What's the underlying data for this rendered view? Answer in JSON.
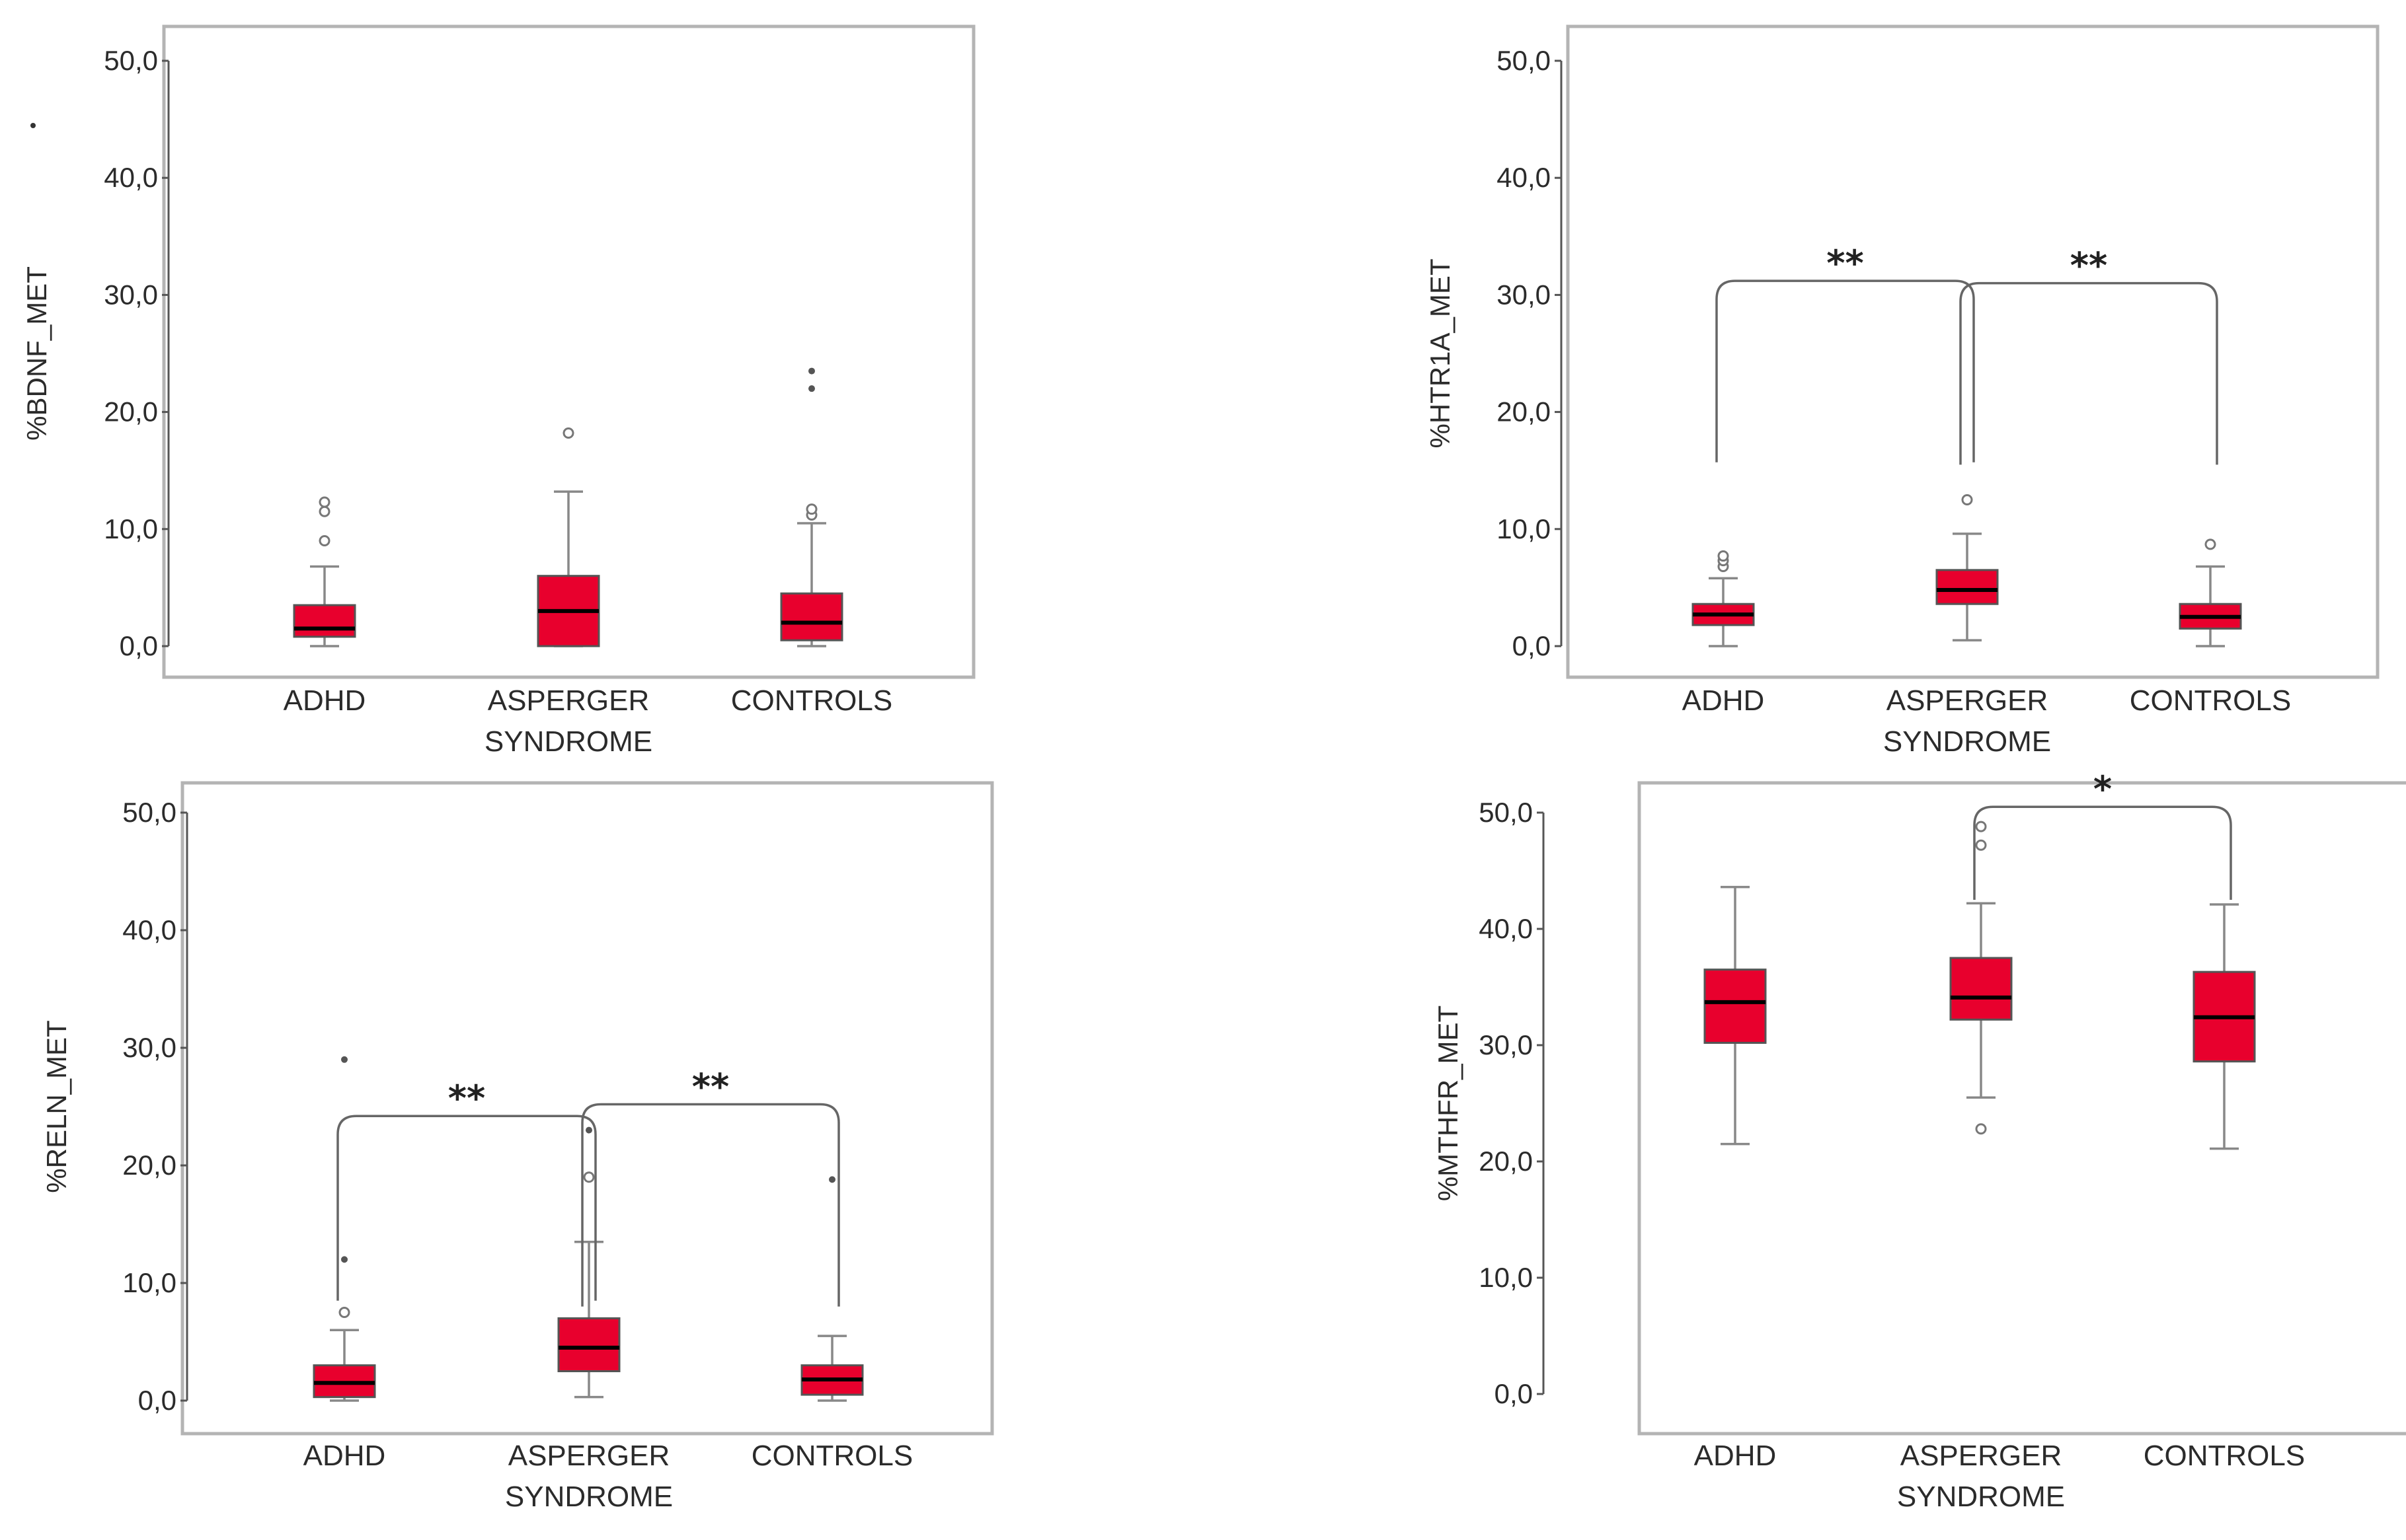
{
  "colors": {
    "box_fill": "#e8002d",
    "frame": "#b4b4b4"
  },
  "chart_data": [
    {
      "type": "box",
      "ylabel": "%BDNF_MET",
      "ylim": [
        0,
        50
      ],
      "yticks": [
        "0,0",
        "10,0",
        "20,0",
        "30,0",
        "40,0",
        "50,0"
      ],
      "categories": [
        "ADHD",
        "ASPERGER SYNDROME",
        "CONTROLS"
      ],
      "category_lines": [
        [
          "ADHD"
        ],
        [
          "ASPERGER",
          "SYNDROME"
        ],
        [
          "CONTROLS"
        ]
      ],
      "boxes": [
        {
          "min": 0.0,
          "q1": 0.8,
          "median": 1.5,
          "q3": 3.5,
          "max": 6.8,
          "outliers": [
            9.0,
            11.5,
            12.3
          ],
          "extremes": []
        },
        {
          "min": 0.0,
          "q1": 0.0,
          "median": 3.0,
          "q3": 6.0,
          "max": 13.2,
          "outliers": [
            18.2
          ],
          "extremes": []
        },
        {
          "min": 0.0,
          "q1": 0.5,
          "median": 2.0,
          "q3": 4.5,
          "max": 10.5,
          "outliers": [
            11.2,
            11.7
          ],
          "extremes": [
            22.0,
            23.5
          ]
        }
      ],
      "brackets": []
    },
    {
      "type": "box",
      "ylabel": "%HTR1A_MET",
      "ylim": [
        0,
        50
      ],
      "yticks": [
        "0,0",
        "10,0",
        "20,0",
        "30,0",
        "40,0",
        "50,0"
      ],
      "categories": [
        "ADHD",
        "ASPERGER SYNDROME",
        "CONTROLS"
      ],
      "category_lines": [
        [
          "ADHD"
        ],
        [
          "ASPERGER",
          "SYNDROME"
        ],
        [
          "CONTROLS"
        ]
      ],
      "boxes": [
        {
          "min": 0.0,
          "q1": 1.8,
          "median": 2.7,
          "q3": 3.6,
          "max": 5.8,
          "outliers": [
            6.8,
            7.3,
            7.7
          ],
          "extremes": []
        },
        {
          "min": 0.5,
          "q1": 3.6,
          "median": 4.8,
          "q3": 6.5,
          "max": 9.6,
          "outliers": [
            12.5
          ],
          "extremes": []
        },
        {
          "min": 0.0,
          "q1": 1.5,
          "median": 2.5,
          "q3": 3.6,
          "max": 6.8,
          "outliers": [
            8.7
          ],
          "extremes": []
        }
      ],
      "brackets": [
        {
          "from": 0,
          "to": 1,
          "y": 31.2,
          "drop_from": 15.7,
          "drop_to": 15.7,
          "label": "**"
        },
        {
          "from": 1,
          "to": 2,
          "y": 31.0,
          "drop_from": 15.5,
          "drop_to": 15.5,
          "label": "**"
        }
      ]
    },
    {
      "type": "box",
      "ylabel": "%RELN_MET",
      "ylim": [
        0,
        50
      ],
      "yticks": [
        "0,0",
        "10,0",
        "20,0",
        "30,0",
        "40,0",
        "50,0"
      ],
      "categories": [
        "ADHD",
        "ASPERGER SYNDROME",
        "CONTROLS"
      ],
      "category_lines": [
        [
          "ADHD"
        ],
        [
          "ASPERGER",
          "SYNDROME"
        ],
        [
          "CONTROLS"
        ]
      ],
      "boxes": [
        {
          "min": 0.0,
          "q1": 0.3,
          "median": 1.5,
          "q3": 3.0,
          "max": 6.0,
          "outliers": [
            7.5
          ],
          "extremes": [
            12.0,
            29.0
          ]
        },
        {
          "min": 0.3,
          "q1": 2.5,
          "median": 4.5,
          "q3": 7.0,
          "max": 13.5,
          "outliers": [
            19.0
          ],
          "extremes": [
            23.0
          ]
        },
        {
          "min": 0.0,
          "q1": 0.5,
          "median": 1.8,
          "q3": 3.0,
          "max": 5.5,
          "outliers": [],
          "extremes": [
            18.8
          ]
        }
      ],
      "brackets": [
        {
          "from": 0,
          "to": 1,
          "y": 24.2,
          "drop_from": 8.5,
          "drop_to": 8.5,
          "label": "**"
        },
        {
          "from": 1,
          "to": 2,
          "y": 25.2,
          "drop_from": 8.0,
          "drop_to": 8.0,
          "label": "**"
        }
      ]
    },
    {
      "type": "box",
      "ylabel": "%MTHFR_MET",
      "ylim": [
        0,
        50
      ],
      "yticks": [
        "0,0",
        "10,0",
        "20,0",
        "30,0",
        "40,0",
        "50,0"
      ],
      "categories": [
        "ADHD",
        "ASPERGER SYNDROME",
        "CONTROLS"
      ],
      "category_lines": [
        [
          "ADHD"
        ],
        [
          "ASPERGER",
          "SYNDROME"
        ],
        [
          "CONTROLS"
        ]
      ],
      "boxes": [
        {
          "min": 21.5,
          "q1": 30.2,
          "median": 33.7,
          "q3": 36.5,
          "max": 43.6,
          "outliers": [],
          "extremes": []
        },
        {
          "min": 25.5,
          "q1": 32.2,
          "median": 34.1,
          "q3": 37.5,
          "max": 42.2,
          "outliers": [
            22.8,
            47.2,
            48.8
          ],
          "extremes": []
        },
        {
          "min": 21.1,
          "q1": 28.6,
          "median": 32.4,
          "q3": 36.3,
          "max": 42.1,
          "outliers": [],
          "extremes": []
        }
      ],
      "brackets": [
        {
          "from": 1,
          "to": 2,
          "y": 50.5,
          "drop_from": 42.5,
          "drop_to": 42.5,
          "label": "*"
        }
      ]
    }
  ]
}
